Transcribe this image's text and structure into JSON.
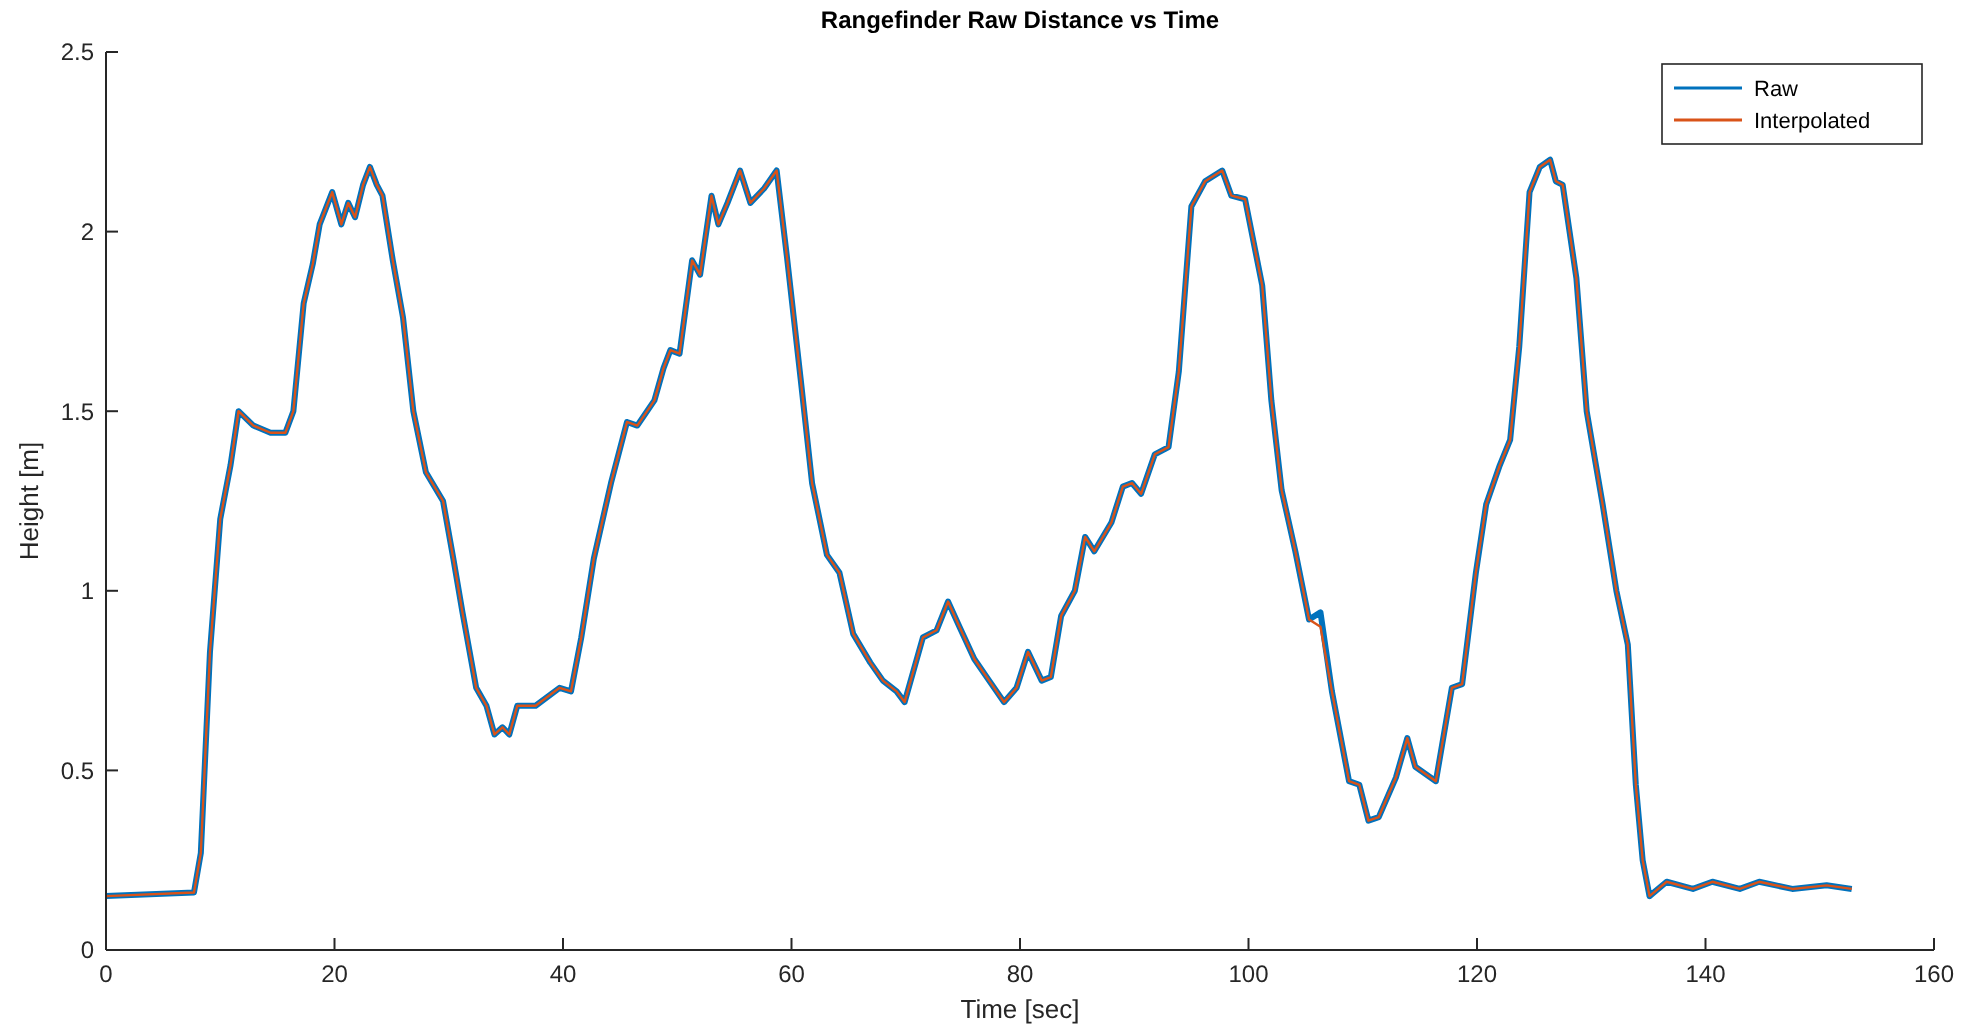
{
  "chart_data": {
    "type": "line",
    "title": "Rangefinder Raw Distance vs Time",
    "xlabel": "Time [sec]",
    "ylabel": "Height [m]",
    "x": [
      0,
      7.7,
      8.3,
      9.1,
      10.0,
      10.9,
      11.6,
      12.9,
      14.4,
      15.7,
      16.4,
      17.3,
      18.1,
      18.7,
      19.8,
      20.6,
      21.2,
      21.8,
      22.5,
      23.1,
      23.7,
      24.2,
      25.1,
      26.0,
      26.9,
      28.0,
      29.5,
      30.4,
      31.2,
      32.4,
      33.3,
      34.0,
      34.7,
      35.3,
      36.0,
      37.6,
      39.7,
      40.7,
      41.6,
      42.7,
      44.2,
      45.6,
      46.5,
      48.0,
      48.8,
      49.4,
      50.2,
      51.3,
      52.0,
      53.0,
      53.6,
      54.4,
      55.5,
      56.4,
      57.6,
      58.7,
      59.6,
      60.8,
      61.8,
      63.1,
      64.2,
      65.4,
      66.9,
      68.0,
      69.2,
      69.9,
      71.5,
      72.7,
      73.7,
      74.7,
      76.0,
      77.3,
      78.6,
      79.7,
      80.7,
      81.9,
      82.7,
      83.6,
      84.8,
      85.7,
      86.5,
      88.0,
      89.0,
      89.8,
      90.6,
      91.8,
      93.0,
      93.9,
      95.0,
      96.2,
      97.7,
      98.5,
      99.7,
      101.2,
      102.0,
      102.9,
      104.1,
      105.3,
      106.3,
      107.3,
      108.8,
      109.7,
      110.5,
      111.4,
      112.9,
      113.9,
      114.6,
      116.4,
      117.8,
      118.7,
      119.9,
      120.8,
      122.0,
      122.9,
      123.7,
      124.6,
      125.5,
      126.4,
      126.9,
      127.5,
      128.7,
      129.6,
      131.0,
      132.2,
      133.2,
      133.9,
      134.5,
      135.1,
      136.6,
      138.9,
      140.6,
      143.0,
      144.7,
      147.6,
      150.6,
      152.8
    ],
    "series": [
      {
        "name": "Raw",
        "color": "#0072bd",
        "values": [
          0.15,
          0.16,
          0.27,
          0.83,
          1.2,
          1.35,
          1.5,
          1.46,
          1.44,
          1.44,
          1.5,
          1.8,
          1.91,
          2.02,
          2.11,
          2.02,
          2.08,
          2.04,
          2.13,
          2.18,
          2.13,
          2.1,
          1.92,
          1.76,
          1.5,
          1.33,
          1.25,
          1.09,
          0.94,
          0.73,
          0.68,
          0.6,
          0.62,
          0.6,
          0.68,
          0.68,
          0.73,
          0.72,
          0.87,
          1.09,
          1.3,
          1.47,
          1.46,
          1.53,
          1.62,
          1.67,
          1.66,
          1.92,
          1.88,
          2.1,
          2.02,
          2.08,
          2.17,
          2.08,
          2.12,
          2.17,
          1.93,
          1.59,
          1.3,
          1.1,
          1.05,
          0.88,
          0.8,
          0.75,
          0.72,
          0.69,
          0.87,
          0.89,
          0.97,
          0.9,
          0.81,
          0.75,
          0.69,
          0.73,
          0.83,
          0.75,
          0.76,
          0.93,
          1.0,
          1.15,
          1.11,
          1.19,
          1.29,
          1.3,
          1.27,
          1.38,
          1.4,
          1.61,
          2.07,
          2.14,
          2.17,
          2.1,
          2.09,
          1.85,
          1.53,
          1.28,
          1.11,
          0.92,
          0.94,
          0.72,
          0.47,
          0.46,
          0.36,
          0.37,
          0.48,
          0.59,
          0.51,
          0.47,
          0.73,
          0.74,
          1.05,
          1.24,
          1.35,
          1.42,
          1.68,
          2.11,
          2.18,
          2.2,
          2.14,
          2.13,
          1.87,
          1.5,
          1.24,
          1.0,
          0.85,
          0.46,
          0.25,
          0.15,
          0.19,
          0.17,
          0.19,
          0.17,
          0.19,
          0.17,
          0.18,
          0.17
        ]
      },
      {
        "name": "Interpolated",
        "color": "#d95319",
        "values": [
          0.15,
          0.16,
          0.27,
          0.83,
          1.2,
          1.35,
          1.5,
          1.46,
          1.44,
          1.44,
          1.5,
          1.8,
          1.91,
          2.02,
          2.11,
          2.02,
          2.08,
          2.04,
          2.13,
          2.18,
          2.13,
          2.1,
          1.92,
          1.76,
          1.5,
          1.33,
          1.25,
          1.09,
          0.94,
          0.73,
          0.68,
          0.6,
          0.62,
          0.6,
          0.68,
          0.68,
          0.73,
          0.72,
          0.87,
          1.09,
          1.3,
          1.47,
          1.46,
          1.53,
          1.62,
          1.67,
          1.66,
          1.92,
          1.88,
          2.1,
          2.02,
          2.08,
          2.17,
          2.08,
          2.12,
          2.17,
          1.93,
          1.59,
          1.3,
          1.1,
          1.05,
          0.88,
          0.8,
          0.75,
          0.72,
          0.69,
          0.87,
          0.89,
          0.97,
          0.9,
          0.81,
          0.75,
          0.69,
          0.73,
          0.83,
          0.75,
          0.76,
          0.93,
          1.0,
          1.15,
          1.11,
          1.19,
          1.29,
          1.3,
          1.27,
          1.38,
          1.4,
          1.61,
          2.07,
          2.14,
          2.17,
          2.1,
          2.09,
          1.85,
          1.53,
          1.28,
          1.11,
          0.92,
          0.9,
          0.72,
          0.47,
          0.46,
          0.36,
          0.37,
          0.48,
          0.59,
          0.51,
          0.47,
          0.73,
          0.74,
          1.05,
          1.24,
          1.35,
          1.42,
          1.68,
          2.11,
          2.18,
          2.2,
          2.14,
          2.13,
          1.87,
          1.5,
          1.24,
          1.0,
          0.85,
          0.46,
          0.25,
          0.15,
          0.19,
          0.17,
          0.19,
          0.17,
          0.19,
          0.17,
          0.18,
          0.17
        ]
      }
    ],
    "xlim": [
      0,
      160
    ],
    "xticks": [
      0,
      20,
      40,
      60,
      80,
      100,
      120,
      140,
      160
    ],
    "ylim": [
      0,
      2.5
    ],
    "yticks": [
      0,
      0.5,
      1,
      1.5,
      2,
      2.5
    ],
    "legend": "top right",
    "grid": false,
    "line_style": "solid",
    "marker": "none"
  }
}
